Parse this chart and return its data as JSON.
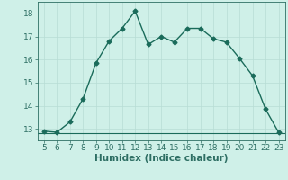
{
  "x": [
    5,
    6,
    7,
    8,
    9,
    10,
    11,
    12,
    13,
    14,
    15,
    16,
    17,
    18,
    19,
    20,
    21,
    22,
    23
  ],
  "y": [
    12.9,
    12.85,
    13.3,
    14.3,
    15.85,
    16.8,
    17.35,
    18.1,
    16.65,
    17.0,
    16.75,
    17.35,
    17.35,
    16.9,
    16.75,
    16.05,
    15.3,
    13.85,
    12.85
  ],
  "hline_y": 12.82,
  "line_color": "#1a6b5a",
  "marker": "D",
  "marker_size": 2.5,
  "linewidth": 1.0,
  "xlabel": "Humidex (Indice chaleur)",
  "xlim": [
    4.5,
    23.5
  ],
  "ylim": [
    12.5,
    18.5
  ],
  "yticks": [
    13,
    14,
    15,
    16,
    17,
    18
  ],
  "xticks": [
    5,
    6,
    7,
    8,
    9,
    10,
    11,
    12,
    13,
    14,
    15,
    16,
    17,
    18,
    19,
    20,
    21,
    22,
    23
  ],
  "bg_color": "#cff0e8",
  "grid_color": "#b8ddd5",
  "axis_color": "#2d6e63",
  "xlabel_fontsize": 7.5,
  "tick_fontsize": 6.5
}
